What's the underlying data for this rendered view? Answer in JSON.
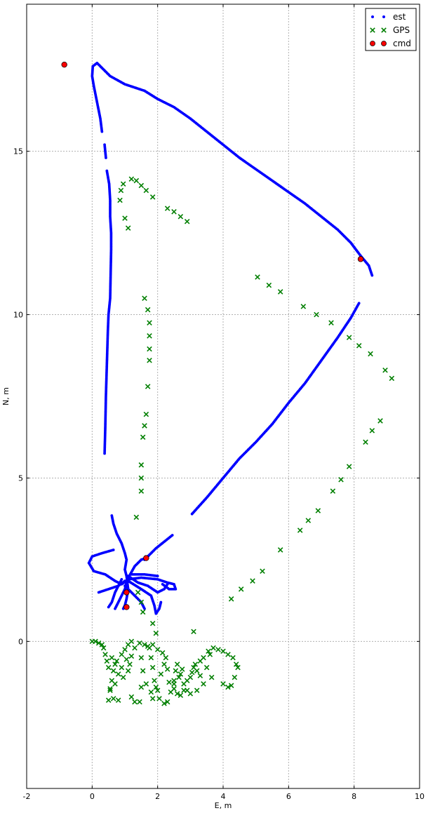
{
  "chart_data": {
    "type": "scatter",
    "title": "",
    "xlabel": "E, m",
    "ylabel": "N, m",
    "xlim": [
      -2,
      10
    ],
    "ylim": [
      -4.5,
      19.5
    ],
    "xticks": [
      -2,
      0,
      2,
      4,
      6,
      8,
      10
    ],
    "yticks": [
      0,
      5,
      10,
      15
    ],
    "grid": true,
    "legend_position": "top-right",
    "series": [
      {
        "name": "est",
        "marker": "dot",
        "color": "#0000ff",
        "segments": [
          [
            [
              0.38,
              5.75
            ],
            [
              0.4,
              6.5
            ],
            [
              0.42,
              7.5
            ],
            [
              0.45,
              8.5
            ],
            [
              0.48,
              9.5
            ],
            [
              0.5,
              10.0
            ],
            [
              0.55,
              10.5
            ],
            [
              0.56,
              11.0
            ],
            [
              0.57,
              11.5
            ],
            [
              0.58,
              12.0
            ],
            [
              0.58,
              12.5
            ],
            [
              0.55,
              13.0
            ],
            [
              0.55,
              13.5
            ],
            [
              0.52,
              14.0
            ],
            [
              0.45,
              14.4
            ]
          ],
          [
            [
              0.42,
              14.8
            ],
            [
              0.38,
              15.2
            ]
          ],
          [
            [
              0.3,
              15.6
            ],
            [
              0.25,
              16.0
            ],
            [
              0.15,
              16.5
            ],
            [
              0.05,
              17.0
            ],
            [
              0.0,
              17.3
            ],
            [
              0.02,
              17.6
            ],
            [
              0.15,
              17.7
            ],
            [
              0.3,
              17.55
            ],
            [
              0.55,
              17.3
            ],
            [
              1.0,
              17.05
            ],
            [
              1.6,
              16.85
            ],
            [
              2.0,
              16.6
            ],
            [
              2.5,
              16.35
            ],
            [
              3.0,
              16.0
            ],
            [
              3.5,
              15.6
            ],
            [
              4.0,
              15.2
            ],
            [
              4.5,
              14.8
            ],
            [
              5.0,
              14.45
            ],
            [
              5.5,
              14.1
            ],
            [
              6.0,
              13.75
            ],
            [
              6.5,
              13.4
            ],
            [
              7.0,
              13.0
            ],
            [
              7.5,
              12.6
            ],
            [
              7.9,
              12.2
            ],
            [
              8.2,
              11.8
            ],
            [
              8.45,
              11.5
            ],
            [
              8.55,
              11.2
            ]
          ],
          [
            [
              3.05,
              3.9
            ],
            [
              3.5,
              4.4
            ],
            [
              4.0,
              5.0
            ],
            [
              4.5,
              5.6
            ],
            [
              5.0,
              6.1
            ],
            [
              5.5,
              6.65
            ],
            [
              6.0,
              7.3
            ],
            [
              6.5,
              7.9
            ],
            [
              7.0,
              8.6
            ],
            [
              7.5,
              9.3
            ],
            [
              7.9,
              9.9
            ],
            [
              8.15,
              10.35
            ]
          ],
          [
            [
              2.45,
              3.25
            ],
            [
              2.2,
              3.05
            ],
            [
              1.95,
              2.85
            ],
            [
              1.75,
              2.65
            ],
            [
              1.6,
              2.5
            ]
          ],
          [
            [
              0.6,
              3.85
            ],
            [
              0.65,
              3.6
            ],
            [
              0.75,
              3.3
            ],
            [
              0.9,
              3.0
            ],
            [
              1.0,
              2.7
            ],
            [
              1.05,
              2.5
            ],
            [
              1.0,
              2.2
            ],
            [
              1.05,
              2.0
            ],
            [
              1.1,
              1.6
            ],
            [
              1.05,
              1.3
            ],
            [
              1.0,
              1.1
            ],
            [
              0.95,
              1.0
            ]
          ],
          [
            [
              0.7,
              1.0
            ],
            [
              0.9,
              1.4
            ],
            [
              1.0,
              1.6
            ],
            [
              1.05,
              1.8
            ]
          ],
          [
            [
              0.65,
              2.8
            ],
            [
              0.3,
              2.7
            ],
            [
              0.0,
              2.6
            ],
            [
              -0.1,
              2.4
            ],
            [
              0.05,
              2.15
            ],
            [
              0.4,
              2.05
            ],
            [
              0.7,
              1.85
            ],
            [
              0.9,
              1.75
            ],
            [
              1.05,
              1.85
            ]
          ],
          [
            [
              0.2,
              1.5
            ],
            [
              0.5,
              1.6
            ],
            [
              0.8,
              1.7
            ],
            [
              1.0,
              1.85
            ]
          ],
          [
            [
              1.05,
              1.85
            ],
            [
              1.3,
              2.3
            ],
            [
              1.5,
              2.5
            ],
            [
              1.65,
              2.55
            ]
          ],
          [
            [
              1.1,
              1.9
            ],
            [
              1.5,
              1.95
            ],
            [
              2.0,
              1.9
            ],
            [
              2.3,
              1.8
            ],
            [
              2.5,
              1.75
            ],
            [
              2.55,
              1.6
            ],
            [
              2.35,
              1.6
            ],
            [
              2.15,
              1.75
            ]
          ],
          [
            [
              1.1,
              1.85
            ],
            [
              1.5,
              1.6
            ],
            [
              1.8,
              1.4
            ],
            [
              1.9,
              1.1
            ],
            [
              1.95,
              0.85
            ],
            [
              2.05,
              1.0
            ],
            [
              2.1,
              1.2
            ]
          ],
          [
            [
              1.1,
              2.0
            ],
            [
              1.4,
              1.8
            ],
            [
              1.7,
              1.7
            ],
            [
              2.0,
              1.5
            ],
            [
              2.2,
              1.6
            ],
            [
              2.3,
              1.75
            ]
          ],
          [
            [
              1.2,
              2.05
            ],
            [
              1.6,
              2.05
            ],
            [
              2.0,
              2.0
            ]
          ],
          [
            [
              1.0,
              1.7
            ],
            [
              1.3,
              1.4
            ],
            [
              1.5,
              1.2
            ],
            [
              1.6,
              1.0
            ]
          ],
          [
            [
              0.9,
              1.9
            ],
            [
              0.7,
              1.5
            ],
            [
              0.6,
              1.2
            ],
            [
              0.5,
              1.05
            ]
          ]
        ]
      },
      {
        "name": "GPS",
        "marker": "x",
        "color": "#007f00",
        "points": [
          [
            0.85,
            13.5
          ],
          [
            0.88,
            13.8
          ],
          [
            0.95,
            14.0
          ],
          [
            1.2,
            14.15
          ],
          [
            1.35,
            14.1
          ],
          [
            1.5,
            13.95
          ],
          [
            1.65,
            13.8
          ],
          [
            1.85,
            13.6
          ],
          [
            1.0,
            12.95
          ],
          [
            1.1,
            12.65
          ],
          [
            2.3,
            13.25
          ],
          [
            2.5,
            13.15
          ],
          [
            2.7,
            13.0
          ],
          [
            2.9,
            12.85
          ],
          [
            1.6,
            10.5
          ],
          [
            1.7,
            10.15
          ],
          [
            1.75,
            9.75
          ],
          [
            1.75,
            9.35
          ],
          [
            1.75,
            8.95
          ],
          [
            1.75,
            8.6
          ],
          [
            1.7,
            7.8
          ],
          [
            1.65,
            6.95
          ],
          [
            1.6,
            6.6
          ],
          [
            1.55,
            6.25
          ],
          [
            1.5,
            5.4
          ],
          [
            1.5,
            5.0
          ],
          [
            1.5,
            4.6
          ],
          [
            1.35,
            3.8
          ],
          [
            5.05,
            11.15
          ],
          [
            5.4,
            10.9
          ],
          [
            5.75,
            10.7
          ],
          [
            6.45,
            10.25
          ],
          [
            6.85,
            10.0
          ],
          [
            7.3,
            9.75
          ],
          [
            7.85,
            9.3
          ],
          [
            8.15,
            9.05
          ],
          [
            8.5,
            8.8
          ],
          [
            8.95,
            8.3
          ],
          [
            9.15,
            8.05
          ],
          [
            8.8,
            6.75
          ],
          [
            8.55,
            6.45
          ],
          [
            8.35,
            6.1
          ],
          [
            7.85,
            5.35
          ],
          [
            7.6,
            4.95
          ],
          [
            7.35,
            4.6
          ],
          [
            6.9,
            4.0
          ],
          [
            6.6,
            3.7
          ],
          [
            6.35,
            3.4
          ],
          [
            5.75,
            2.8
          ],
          [
            5.2,
            2.15
          ],
          [
            4.9,
            1.85
          ],
          [
            4.55,
            1.6
          ],
          [
            4.25,
            1.3
          ],
          [
            3.1,
            0.3
          ],
          [
            1.95,
            0.25
          ],
          [
            1.85,
            0.55
          ],
          [
            1.55,
            0.9
          ],
          [
            1.5,
            1.2
          ],
          [
            1.4,
            1.5
          ],
          [
            0.0,
            0.0
          ],
          [
            0.1,
            0.0
          ],
          [
            0.2,
            -0.05
          ],
          [
            0.3,
            -0.1
          ],
          [
            0.35,
            -0.2
          ],
          [
            0.4,
            -0.4
          ],
          [
            0.45,
            -0.6
          ],
          [
            0.5,
            -0.8
          ],
          [
            0.6,
            -0.5
          ],
          [
            0.7,
            -0.7
          ],
          [
            0.8,
            -1.0
          ],
          [
            0.9,
            -0.4
          ],
          [
            1.0,
            -0.25
          ],
          [
            1.1,
            -0.1
          ],
          [
            1.2,
            0.0
          ],
          [
            1.05,
            -0.55
          ],
          [
            1.1,
            -0.9
          ],
          [
            0.95,
            -1.1
          ],
          [
            0.7,
            -1.3
          ],
          [
            0.55,
            -1.5
          ],
          [
            0.5,
            -1.8
          ],
          [
            0.65,
            -1.75
          ],
          [
            0.8,
            -1.8
          ],
          [
            1.2,
            -1.7
          ],
          [
            1.3,
            -1.85
          ],
          [
            1.45,
            -1.85
          ],
          [
            1.5,
            -1.4
          ],
          [
            1.55,
            -0.9
          ],
          [
            1.5,
            -0.5
          ],
          [
            1.6,
            -0.1
          ],
          [
            1.75,
            -0.2
          ],
          [
            1.8,
            -0.5
          ],
          [
            1.85,
            -0.8
          ],
          [
            1.9,
            -1.2
          ],
          [
            2.0,
            -1.5
          ],
          [
            2.05,
            -1.75
          ],
          [
            2.2,
            -1.9
          ],
          [
            2.3,
            -1.85
          ],
          [
            2.4,
            -1.55
          ],
          [
            2.5,
            -1.2
          ],
          [
            2.55,
            -0.9
          ],
          [
            2.6,
            -0.7
          ],
          [
            2.7,
            -1.0
          ],
          [
            2.8,
            -1.3
          ],
          [
            2.9,
            -1.5
          ],
          [
            3.0,
            -1.1
          ],
          [
            3.1,
            -0.8
          ],
          [
            3.2,
            -0.9
          ],
          [
            3.3,
            -0.6
          ],
          [
            3.4,
            -0.5
          ],
          [
            3.55,
            -0.3
          ],
          [
            3.7,
            -0.2
          ],
          [
            3.85,
            -0.25
          ],
          [
            4.0,
            -0.3
          ],
          [
            4.15,
            -0.4
          ],
          [
            4.3,
            -0.5
          ],
          [
            4.4,
            -0.7
          ],
          [
            4.45,
            -0.8
          ],
          [
            4.35,
            -1.1
          ],
          [
            4.25,
            -1.35
          ],
          [
            4.15,
            -1.4
          ],
          [
            4.0,
            -1.3
          ],
          [
            3.65,
            -1.1
          ],
          [
            3.4,
            -1.3
          ],
          [
            3.2,
            -1.5
          ],
          [
            3.0,
            -1.6
          ],
          [
            2.8,
            -1.5
          ],
          [
            2.6,
            -1.6
          ],
          [
            2.5,
            -1.45
          ],
          [
            2.35,
            -1.25
          ],
          [
            2.3,
            -0.85
          ],
          [
            2.25,
            -0.5
          ],
          [
            2.15,
            -0.35
          ],
          [
            2.0,
            -0.25
          ],
          [
            1.85,
            -0.1
          ],
          [
            1.7,
            -0.15
          ],
          [
            1.45,
            -0.05
          ],
          [
            1.3,
            -0.2
          ],
          [
            1.2,
            -0.45
          ],
          [
            1.15,
            -0.7
          ],
          [
            0.9,
            -0.8
          ],
          [
            0.75,
            -0.6
          ],
          [
            0.65,
            -0.9
          ],
          [
            0.6,
            -1.2
          ],
          [
            0.55,
            -1.45
          ],
          [
            1.85,
            -1.75
          ],
          [
            1.95,
            -1.4
          ],
          [
            2.1,
            -1.0
          ],
          [
            2.2,
            -0.7
          ],
          [
            2.5,
            -1.3
          ],
          [
            2.7,
            -1.65
          ],
          [
            2.9,
            -1.2
          ],
          [
            3.05,
            -0.95
          ],
          [
            3.15,
            -0.7
          ],
          [
            3.3,
            -1.05
          ],
          [
            3.5,
            -0.8
          ],
          [
            3.6,
            -0.4
          ],
          [
            1.8,
            -1.55
          ],
          [
            1.65,
            -1.3
          ],
          [
            2.65,
            -1.1
          ],
          [
            2.75,
            -0.85
          ]
        ]
      },
      {
        "name": "cmd",
        "marker": "circle",
        "color": "#ff0000",
        "points": [
          [
            -0.85,
            17.65
          ],
          [
            8.2,
            11.7
          ],
          [
            1.65,
            2.55
          ],
          [
            1.05,
            1.5
          ],
          [
            1.05,
            1.05
          ]
        ]
      }
    ]
  }
}
